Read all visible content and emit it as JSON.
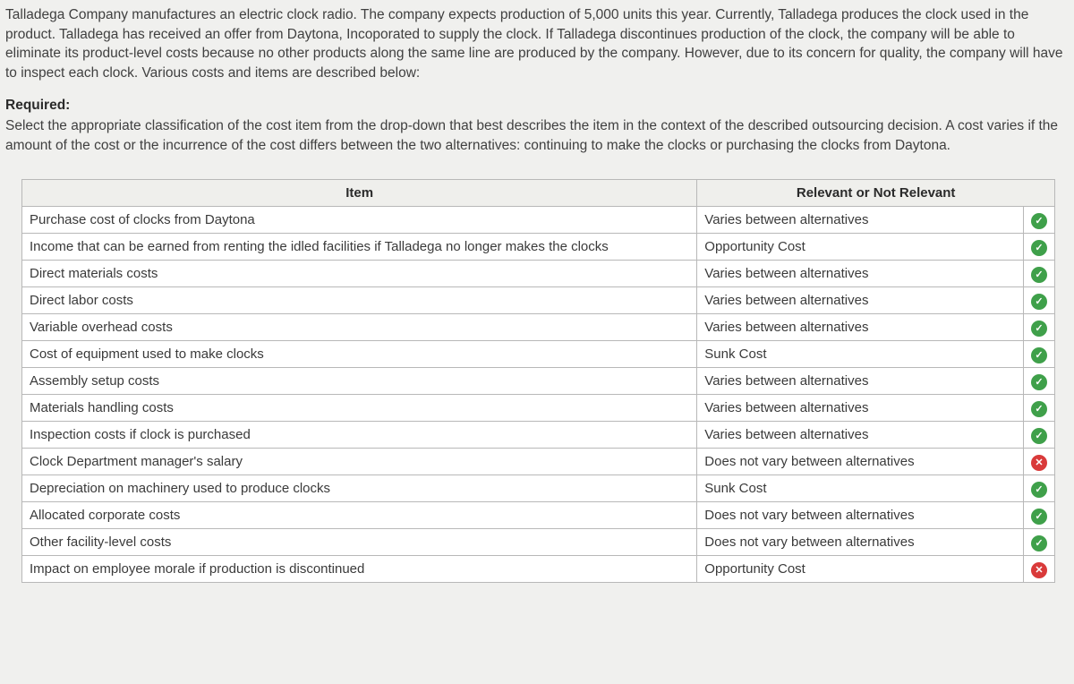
{
  "intro": "Talladega Company manufactures an electric clock radio. The company expects production of 5,000 units this year. Currently, Talladega produces the clock used in the product. Talladega has received an offer from Daytona, Incoporated to supply the clock. If Talladega discontinues production of the clock, the company will be able to eliminate its product-level costs because no other products along the same line are produced by the company. However, due to its concern for quality, the company will have to inspect each clock. Various costs and items are described below:",
  "required_label": "Required:",
  "required_text": "Select the appropriate classification of the cost item from the drop-down that best describes the item in the context of the described outsourcing decision. A cost varies if the amount of the cost or the incurrence of the cost differs between the two alternatives: continuing to make the clocks or purchasing the clocks from Daytona.",
  "columns": {
    "item": "Item",
    "answer": "Relevant or Not Relevant"
  },
  "status_glyphs": {
    "correct": "✓",
    "wrong": "✕"
  },
  "colors": {
    "correct_bg": "#3fa04a",
    "wrong_bg": "#d93a3a",
    "border": "#b8b8b8",
    "header_bg": "#efefec",
    "page_bg": "#f0f0ee",
    "text": "#3a3a3a"
  },
  "rows": [
    {
      "item": "Purchase cost of clocks from Daytona",
      "answer": "Varies between alternatives",
      "status": "correct"
    },
    {
      "item": "Income that can be earned from renting the idled facilities if Talladega no longer makes the clocks",
      "answer": "Opportunity Cost",
      "status": "correct"
    },
    {
      "item": "Direct materials costs",
      "answer": "Varies between alternatives",
      "status": "correct"
    },
    {
      "item": "Direct labor costs",
      "answer": "Varies between alternatives",
      "status": "correct"
    },
    {
      "item": "Variable overhead costs",
      "answer": "Varies between alternatives",
      "status": "correct"
    },
    {
      "item": "Cost of equipment used to make clocks",
      "answer": "Sunk Cost",
      "status": "correct"
    },
    {
      "item": "Assembly setup costs",
      "answer": "Varies between alternatives",
      "status": "correct"
    },
    {
      "item": "Materials handling costs",
      "answer": "Varies between alternatives",
      "status": "correct"
    },
    {
      "item": "Inspection costs if clock is purchased",
      "answer": "Varies between alternatives",
      "status": "correct"
    },
    {
      "item": "Clock Department manager's salary",
      "answer": "Does not vary between alternatives",
      "status": "wrong"
    },
    {
      "item": "Depreciation on machinery used to produce clocks",
      "answer": "Sunk Cost",
      "status": "correct"
    },
    {
      "item": "Allocated corporate costs",
      "answer": "Does not vary between alternatives",
      "status": "correct"
    },
    {
      "item": "Other facility-level costs",
      "answer": "Does not vary between alternatives",
      "status": "correct"
    },
    {
      "item": "Impact on employee morale if production is discontinued",
      "answer": "Opportunity Cost",
      "status": "wrong"
    }
  ]
}
